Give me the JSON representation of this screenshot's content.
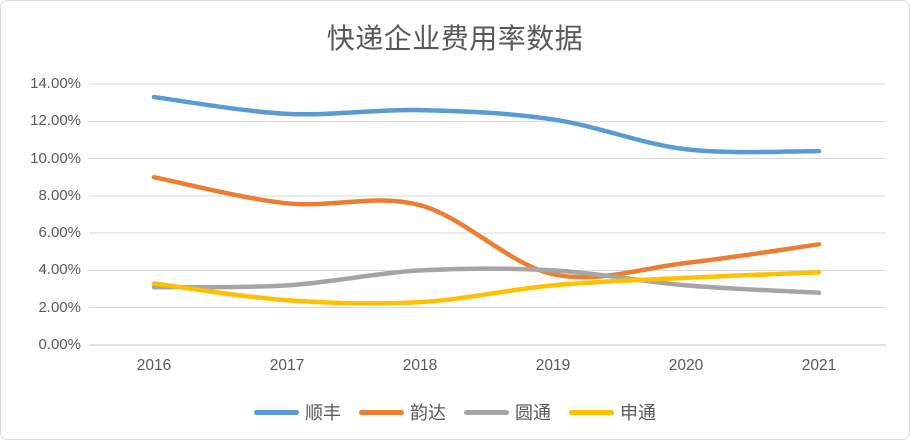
{
  "window": {
    "background": "#ffffff",
    "border_color": "#d9d9d9"
  },
  "chart_data": {
    "type": "line",
    "title": "快递企业费用率数据",
    "categories": [
      "2016",
      "2017",
      "2018",
      "2019",
      "2020",
      "2021"
    ],
    "series": [
      {
        "name": "顺丰",
        "color": "#5B9BD5",
        "values": [
          13.3,
          12.4,
          12.6,
          12.1,
          10.5,
          10.4
        ]
      },
      {
        "name": "韵达",
        "color": "#ED7D31",
        "values": [
          9.0,
          7.6,
          7.5,
          3.8,
          4.4,
          5.4
        ]
      },
      {
        "name": "圆通",
        "color": "#A5A5A5",
        "values": [
          3.1,
          3.2,
          4.0,
          4.0,
          3.2,
          2.8
        ]
      },
      {
        "name": "申通",
        "color": "#FFC000",
        "values": [
          3.3,
          2.4,
          2.3,
          3.2,
          3.6,
          3.9
        ]
      }
    ],
    "smooth_lines": true,
    "x_axis": {
      "tick_labels": [
        "2016",
        "2017",
        "2018",
        "2019",
        "2020",
        "2021"
      ]
    },
    "y_axis": {
      "min": 0,
      "max": 14,
      "step": 2,
      "tick_labels": [
        "0.00%",
        "2.00%",
        "4.00%",
        "6.00%",
        "8.00%",
        "10.00%",
        "12.00%",
        "14.00%"
      ]
    },
    "grid": {
      "show": true,
      "color": "#D9D9D9",
      "baseline_color": "#C6C6C6"
    },
    "legend": {
      "position": "bottom",
      "entries": [
        "顺丰",
        "韵达",
        "圆通",
        "申通"
      ]
    },
    "text_color": "#595959"
  }
}
